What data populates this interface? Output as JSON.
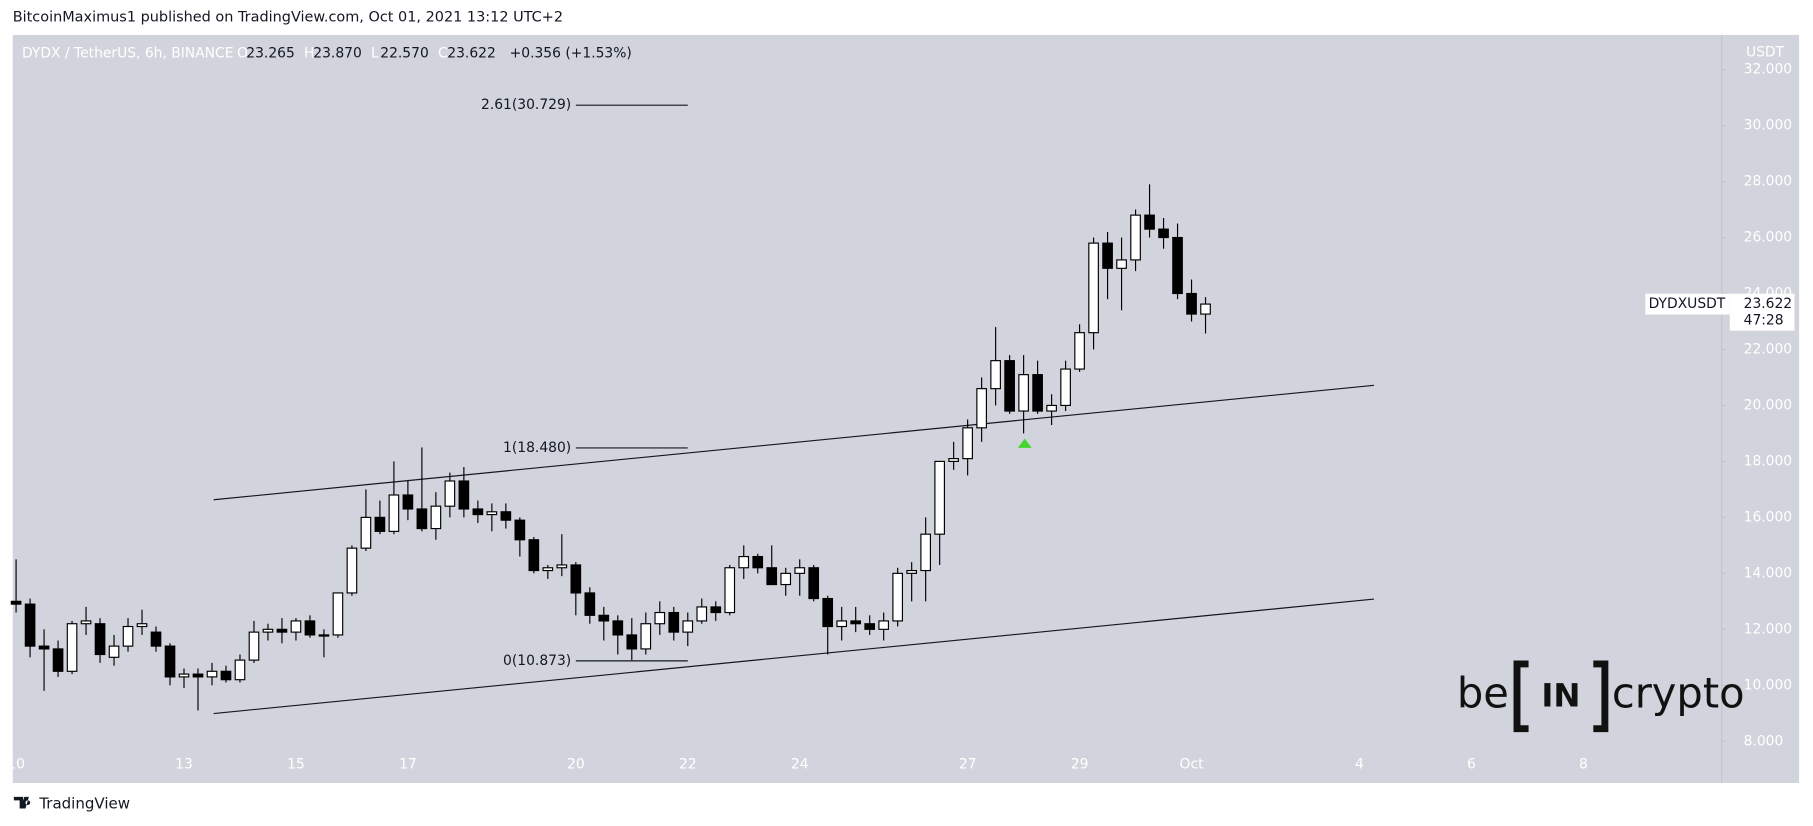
{
  "page": {
    "byline": "BitcoinMaximus1 published on TradingView.com, Oct 01, 2021 13:12 UTC+2",
    "footer_brand": "TradingView",
    "watermark": {
      "left": "be",
      "center": "IN",
      "right": "crypto"
    }
  },
  "chart_data": {
    "type": "candlestick",
    "title": "DYDX / TetherUS, 6h, BINANCE",
    "ohlc_prefixes": [
      "O",
      "H",
      "L",
      "C"
    ],
    "ohlc_labels": [
      "23.265",
      "23.870",
      "22.570",
      "23.622"
    ],
    "change_label": "+0.356 (+1.53%)",
    "y_axis_label": "USDT",
    "up_color": "#ffffff",
    "down_color": "#000000",
    "wick_color": "#000000",
    "x": [
      10,
      10.25,
      10.5,
      10.75,
      11,
      11.25,
      11.5,
      11.75,
      12,
      12.25,
      12.5,
      12.75,
      13,
      13.25,
      13.5,
      13.75,
      14,
      14.25,
      14.5,
      14.75,
      15,
      15.25,
      15.5,
      15.75,
      16,
      16.25,
      16.5,
      16.75,
      17,
      17.25,
      17.5,
      17.75,
      18,
      18.25,
      18.5,
      18.75,
      19,
      19.25,
      19.5,
      19.75,
      20,
      20.25,
      20.5,
      20.75,
      21,
      21.25,
      21.5,
      21.75,
      22,
      22.25,
      22.5,
      22.75,
      23,
      23.25,
      23.5,
      23.75,
      24,
      24.25,
      24.5,
      24.75,
      25,
      25.25,
      25.5,
      25.75,
      26,
      26.25,
      26.5,
      26.75,
      27,
      27.25,
      27.5,
      27.75,
      28,
      28.25,
      28.5,
      28.75,
      29,
      29.25,
      29.5,
      29.75,
      30,
      30.25,
      30.5,
      30.75,
      31,
      31.25
    ],
    "open": [
      13.0,
      12.9,
      11.4,
      11.3,
      10.5,
      12.2,
      12.2,
      11.0,
      11.4,
      12.1,
      11.9,
      11.4,
      10.3,
      10.4,
      10.3,
      10.5,
      10.2,
      10.9,
      11.9,
      12.0,
      11.9,
      12.3,
      11.8,
      11.8,
      13.3,
      14.9,
      16.0,
      15.5,
      16.8,
      16.3,
      15.6,
      16.4,
      17.3,
      16.3,
      16.1,
      16.2,
      15.9,
      15.2,
      14.1,
      14.2,
      14.3,
      13.3,
      12.5,
      12.3,
      11.8,
      11.3,
      12.2,
      12.6,
      11.9,
      12.3,
      12.8,
      12.6,
      14.2,
      14.6,
      14.2,
      13.6,
      14.0,
      14.2,
      13.1,
      12.1,
      12.3,
      12.2,
      12.0,
      12.3,
      14.0,
      14.1,
      15.4,
      18.0,
      18.1,
      19.2,
      20.6,
      21.6,
      19.8,
      21.1,
      19.8,
      20.0,
      21.3,
      22.6,
      25.8,
      24.9,
      25.2,
      26.8,
      26.3,
      26.0,
      24.0,
      23.265
    ],
    "high": [
      14.5,
      13.1,
      12.0,
      11.6,
      12.3,
      12.8,
      12.4,
      11.8,
      12.4,
      12.7,
      12.1,
      11.5,
      10.6,
      10.6,
      10.8,
      10.7,
      11.1,
      12.3,
      12.2,
      12.4,
      12.4,
      12.5,
      12.0,
      13.3,
      15.0,
      17.0,
      16.6,
      18.0,
      17.3,
      18.5,
      16.9,
      17.6,
      17.8,
      16.6,
      16.5,
      16.5,
      16.0,
      15.3,
      14.3,
      15.4,
      14.4,
      13.5,
      12.8,
      12.5,
      12.4,
      12.6,
      13.0,
      12.8,
      12.6,
      13.1,
      13.0,
      14.3,
      15.0,
      14.7,
      15.0,
      14.2,
      14.5,
      14.3,
      13.2,
      12.8,
      12.8,
      12.5,
      12.6,
      14.2,
      14.4,
      16.0,
      18.0,
      18.7,
      19.5,
      21.0,
      22.8,
      21.8,
      21.8,
      21.6,
      20.4,
      21.6,
      22.9,
      26.0,
      26.2,
      26.0,
      27.0,
      27.9,
      26.7,
      26.5,
      24.5,
      23.87
    ],
    "low": [
      12.6,
      11.0,
      9.8,
      10.3,
      10.4,
      11.8,
      10.8,
      10.7,
      11.2,
      11.8,
      11.2,
      10.0,
      9.9,
      9.1,
      10.0,
      10.1,
      10.1,
      10.8,
      11.6,
      11.5,
      11.6,
      11.7,
      11.0,
      11.7,
      13.2,
      14.8,
      15.4,
      15.4,
      15.9,
      15.5,
      15.2,
      16.0,
      16.0,
      15.8,
      15.5,
      15.6,
      14.6,
      14.0,
      13.8,
      13.9,
      12.5,
      12.2,
      11.6,
      11.1,
      10.9,
      11.1,
      11.8,
      11.6,
      11.4,
      12.2,
      12.3,
      12.5,
      13.8,
      14.0,
      13.6,
      13.2,
      13.2,
      13.0,
      11.1,
      11.6,
      11.9,
      11.8,
      11.6,
      12.1,
      13.0,
      13.0,
      14.3,
      17.7,
      17.5,
      18.7,
      20.0,
      19.7,
      19.0,
      19.7,
      19.3,
      19.8,
      21.2,
      22.0,
      23.8,
      23.4,
      24.8,
      26.0,
      25.6,
      23.8,
      23.0,
      22.57
    ],
    "close": [
      12.9,
      11.4,
      11.3,
      10.5,
      12.2,
      12.3,
      11.1,
      11.4,
      12.1,
      12.2,
      11.4,
      10.3,
      10.4,
      10.3,
      10.5,
      10.2,
      10.9,
      11.9,
      12.0,
      11.9,
      12.3,
      11.8,
      11.8,
      13.3,
      14.9,
      16.0,
      15.5,
      16.8,
      16.3,
      15.6,
      16.4,
      17.3,
      16.3,
      16.1,
      16.2,
      15.9,
      15.2,
      14.1,
      14.2,
      14.3,
      13.3,
      12.5,
      12.3,
      11.8,
      11.3,
      12.2,
      12.6,
      11.9,
      12.3,
      12.8,
      12.6,
      14.2,
      14.6,
      14.2,
      13.6,
      14.0,
      14.2,
      13.1,
      12.1,
      12.3,
      12.2,
      12.0,
      12.3,
      14.0,
      14.1,
      15.4,
      18.0,
      18.1,
      19.2,
      20.6,
      21.6,
      19.8,
      21.1,
      19.8,
      20.0,
      21.3,
      22.6,
      25.8,
      24.9,
      25.2,
      26.8,
      26.3,
      26.0,
      24.0,
      23.265,
      23.622
    ],
    "xlim": [
      9.94,
      40.45
    ],
    "xticks": [
      10,
      13,
      15,
      17,
      20,
      22,
      24,
      27,
      29,
      {
        "value": 31,
        "label": "Oct"
      },
      {
        "value": 34,
        "label": "4"
      },
      {
        "value": 36,
        "label": "6"
      },
      {
        "value": 38,
        "label": "8"
      }
    ],
    "ylim": [
      6.55,
      33.24
    ],
    "yticks": [
      {
        "value": 8,
        "label": "8.000"
      },
      {
        "value": 10,
        "label": "10.000"
      },
      {
        "value": 12,
        "label": "12.000"
      },
      {
        "value": 14,
        "label": "14.000"
      },
      {
        "value": 16,
        "label": "16.000"
      },
      {
        "value": 18,
        "label": "18.000"
      },
      {
        "value": 20,
        "label": "20.000"
      },
      {
        "value": 22,
        "label": "22.000"
      },
      {
        "value": 24,
        "label": "24.000"
      },
      {
        "value": 26,
        "label": "26.000"
      },
      {
        "value": 28,
        "label": "28.000"
      },
      {
        "value": 30,
        "label": "30.000"
      },
      {
        "value": 32,
        "label": "32.000"
      }
    ],
    "grid": false,
    "trendlines": [
      {
        "x": [
          13.53,
          34.26
        ],
        "y": [
          16.63,
          20.72
        ]
      },
      {
        "x": [
          13.53,
          34.26
        ],
        "y": [
          8.99,
          13.08
        ]
      }
    ],
    "fib_x": [
      20.0,
      22.0
    ],
    "fib_levels": [
      {
        "value": 30.729,
        "label": "2.61(30.729)"
      },
      {
        "value": 18.48,
        "label": "1(18.480)"
      },
      {
        "value": 10.873,
        "label": "0(10.873)"
      }
    ],
    "signal": {
      "x": 28.02,
      "y": 18.65,
      "color": "#44d62c"
    },
    "last_price": {
      "value": 23.622,
      "label": "23.622",
      "countdown": "47:28",
      "symbol": "DYDXUSDT"
    }
  }
}
